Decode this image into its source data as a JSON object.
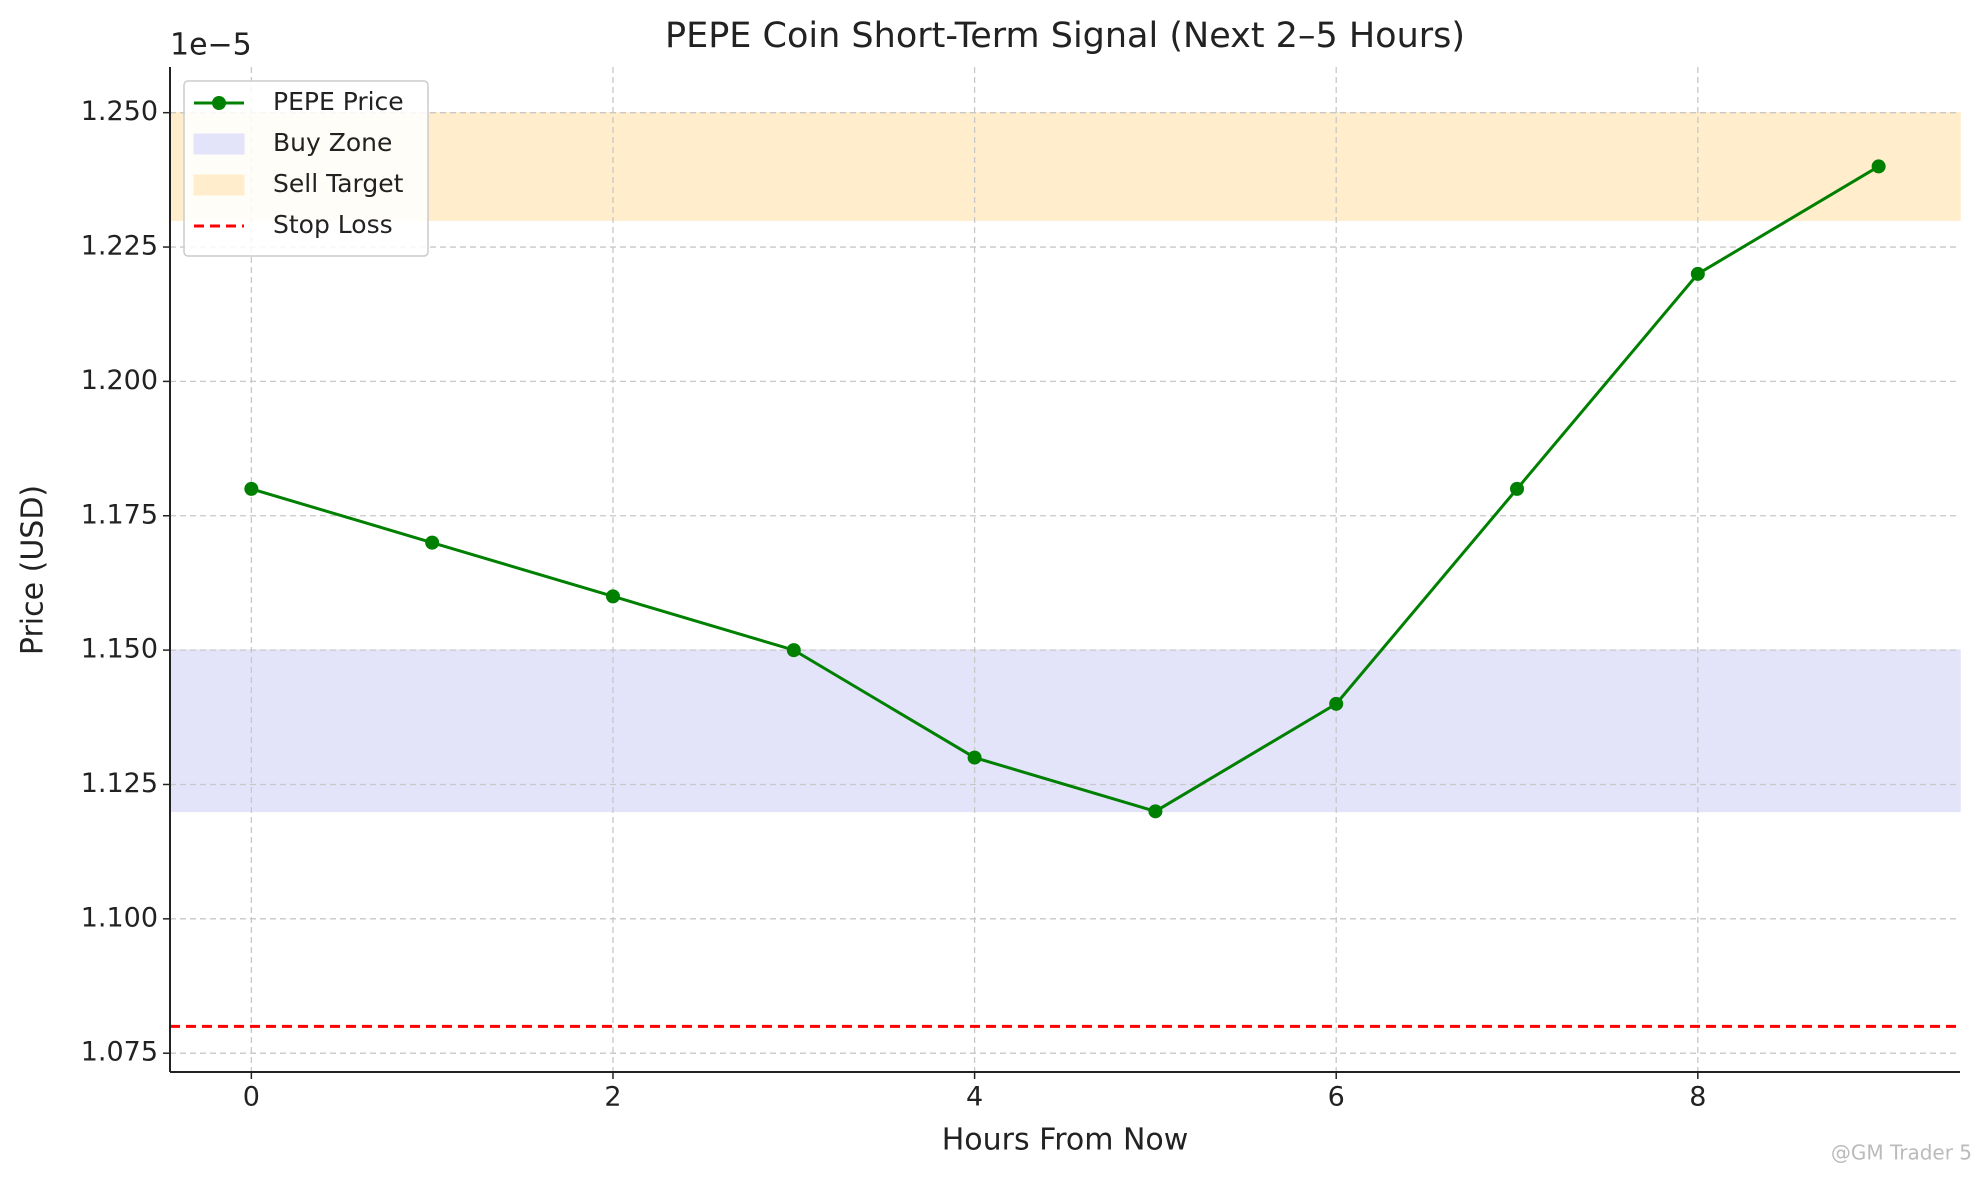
{
  "chart_data": {
    "type": "line",
    "title": "PEPE Coin Short-Term Signal (Next 2–5 Hours)",
    "x_label": "Hours From Now",
    "y_label": "Price (USD)",
    "y_offset_label": "1e−5",
    "x": [
      0,
      1,
      2,
      3,
      4,
      5,
      6,
      7,
      8,
      9
    ],
    "series": [
      {
        "name": "PEPE Price",
        "color": "#008000",
        "values": [
          1.18,
          1.17,
          1.16,
          1.15,
          1.13,
          1.12,
          1.14,
          1.18,
          1.22,
          1.24
        ]
      }
    ],
    "bands": [
      {
        "name": "Buy Zone",
        "color": "#e3e3fa",
        "range": [
          1.12,
          1.15
        ]
      },
      {
        "name": "Sell Target",
        "color": "#ffedcc",
        "range": [
          1.23,
          1.25
        ]
      }
    ],
    "hlines": [
      {
        "name": "Stop Loss",
        "color": "#ff0000",
        "value": 1.08
      }
    ],
    "xlim": [
      -0.45,
      9.45
    ],
    "ylim": [
      1.0715,
      1.2585
    ],
    "xticks": [
      0,
      2,
      4,
      6,
      8
    ],
    "yticks": [
      {
        "value": 1.075,
        "label": "1.075"
      },
      {
        "value": 1.1,
        "label": "1.100"
      },
      {
        "value": 1.125,
        "label": "1.125"
      },
      {
        "value": 1.15,
        "label": "1.150"
      },
      {
        "value": 1.175,
        "label": "1.175"
      },
      {
        "value": 1.2,
        "label": "1.200"
      },
      {
        "value": 1.225,
        "label": "1.225"
      },
      {
        "value": 1.25,
        "label": "1.250"
      }
    ],
    "grid": true,
    "legend": "upper left",
    "watermark": "@GM Trader 5"
  }
}
